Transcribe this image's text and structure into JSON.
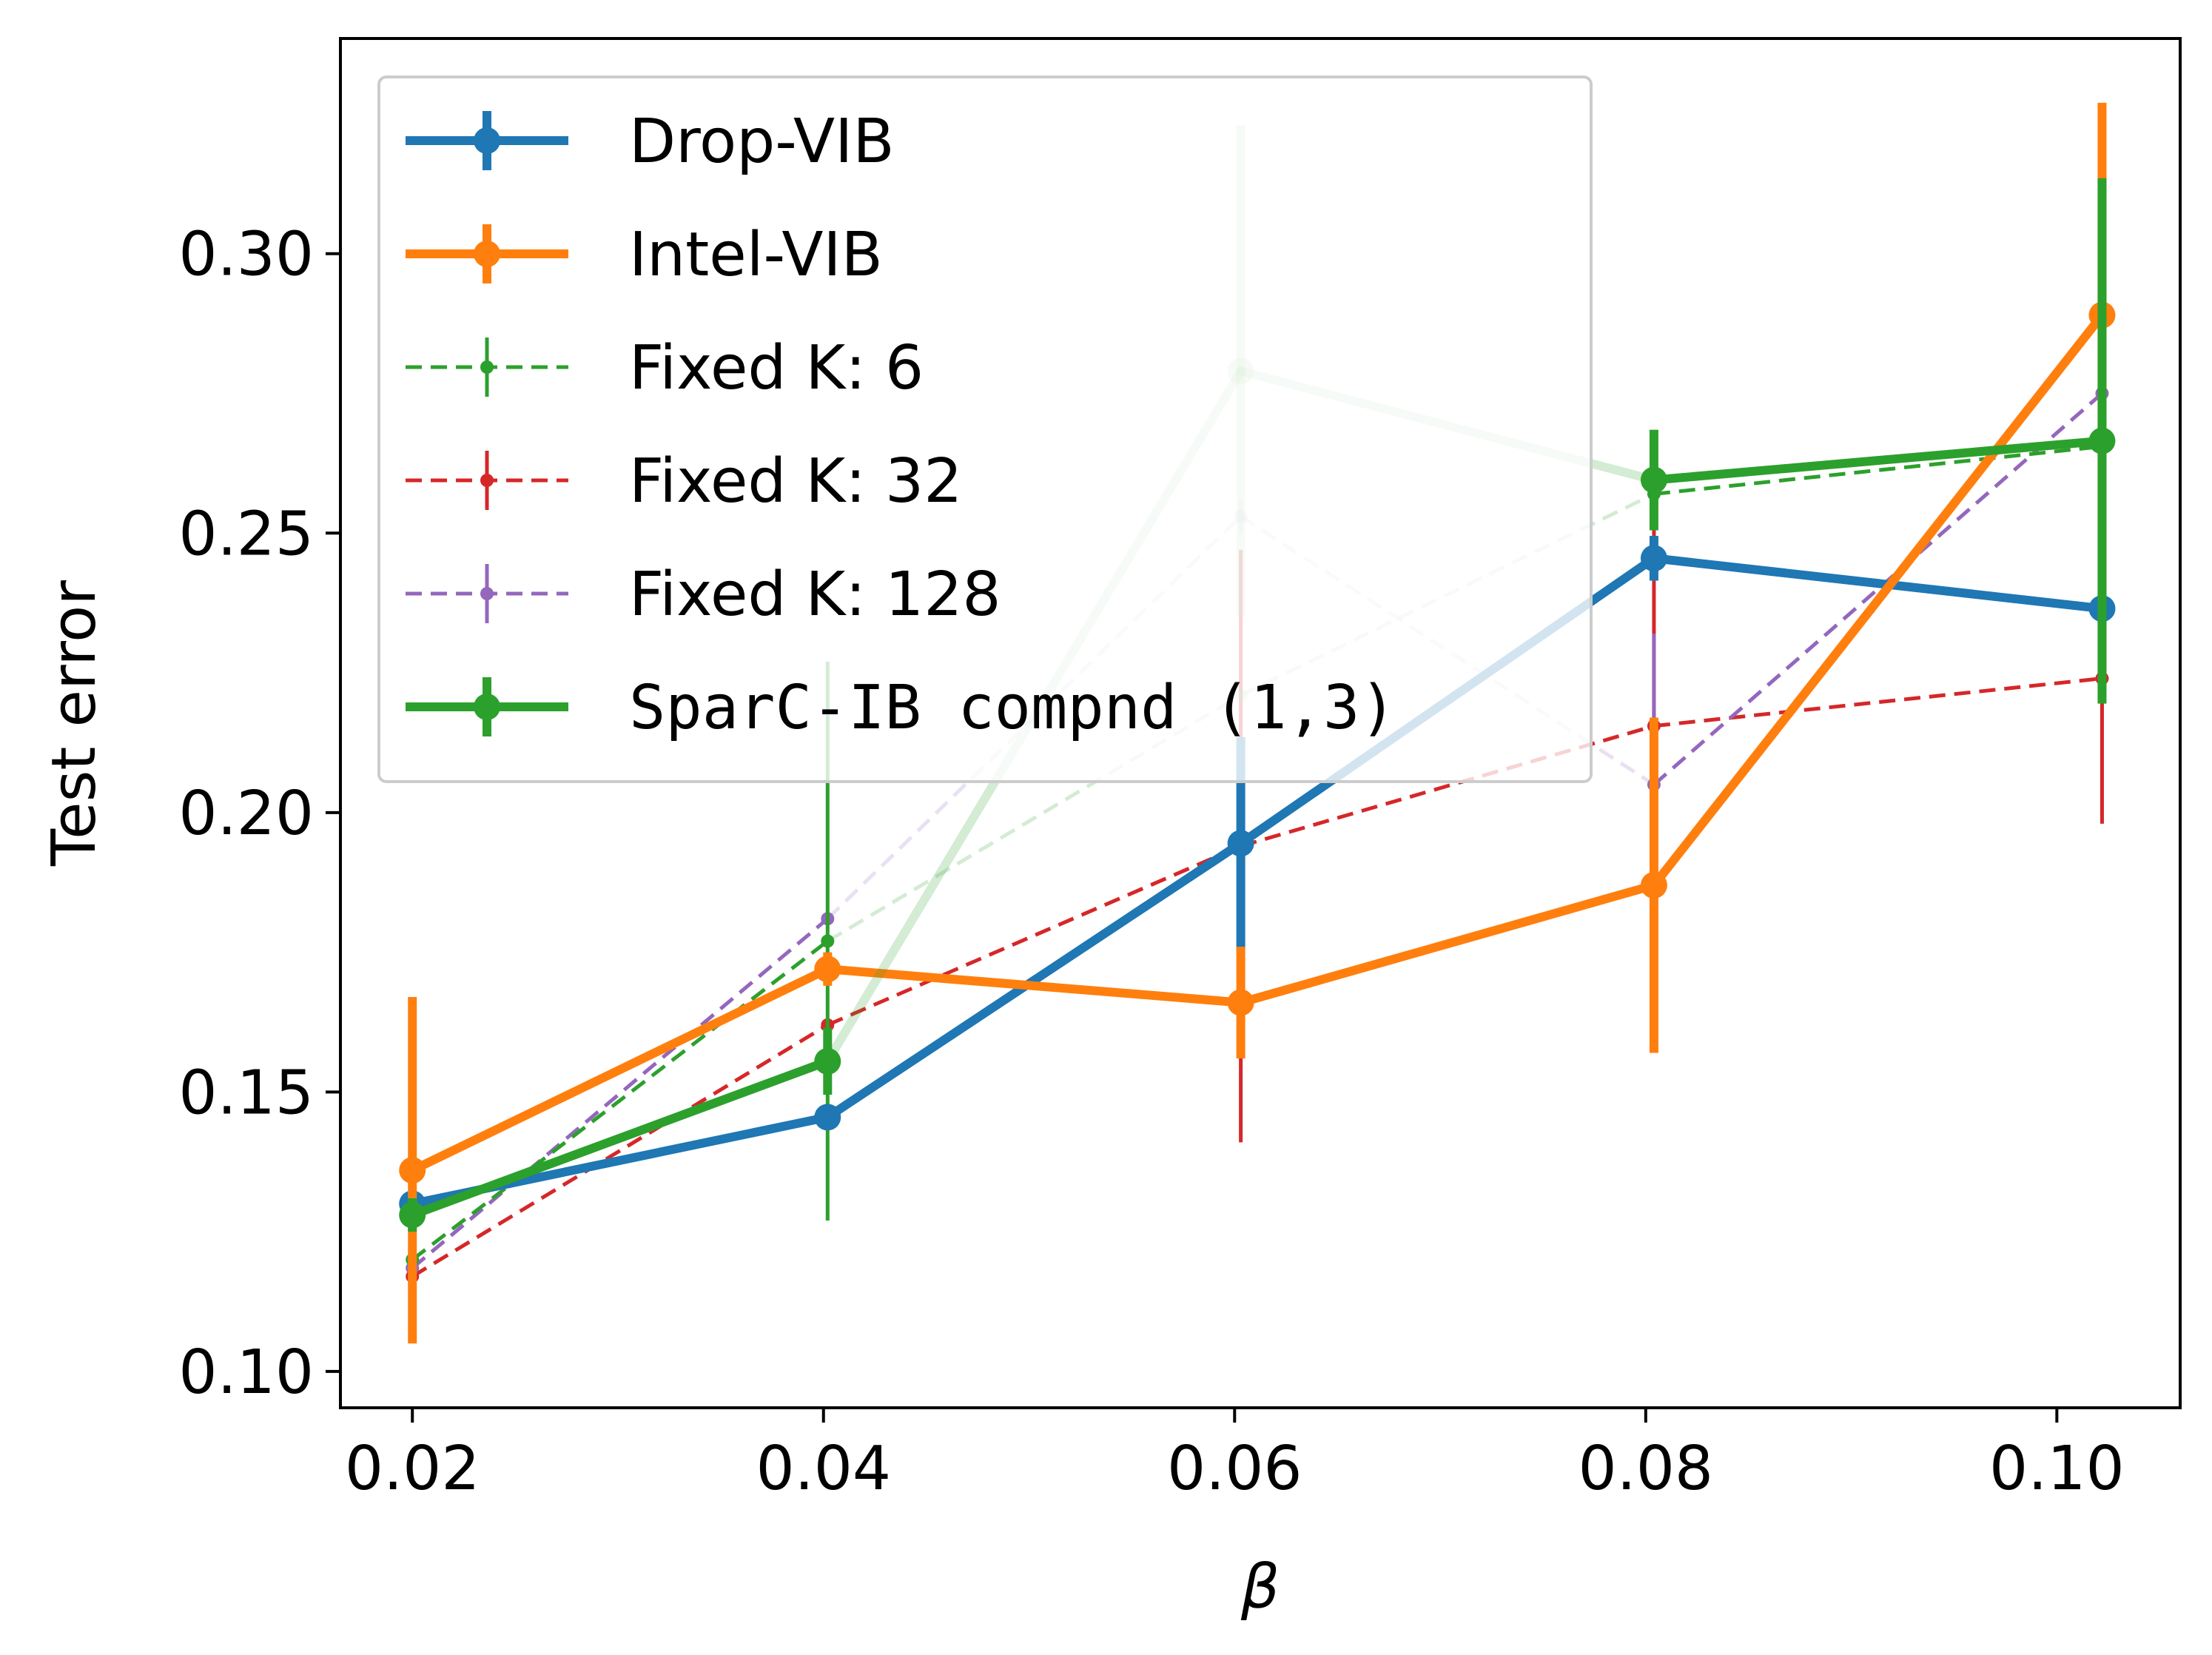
{
  "chart_data": {
    "type": "line",
    "title": "",
    "xlabel": "β",
    "ylabel": "Test error",
    "xlim": [
      0.0165,
      0.106
    ],
    "ylim": [
      0.0935,
      0.3385
    ],
    "xticks": [
      0.02,
      0.04,
      0.06,
      0.08,
      0.1
    ],
    "xtick_labels": [
      "0.02",
      "0.04",
      "0.06",
      "0.08",
      "0.10"
    ],
    "yticks": [
      0.1,
      0.15,
      0.2,
      0.25,
      0.3
    ],
    "ytick_labels": [
      "0.10",
      "0.15",
      "0.20",
      "0.25",
      "0.30"
    ],
    "legend_position": "top-left",
    "series": [
      {
        "name": "Drop-VIB",
        "color": "#1f77b4",
        "style": "solid",
        "weight": "thick",
        "x": [
          0.02,
          0.0402,
          0.0603,
          0.0804,
          0.1022
        ],
        "y": [
          0.13,
          0.1455,
          0.1945,
          0.2455,
          0.2365
        ],
        "err": [
          0.002,
          0.002,
          0.019,
          0.004,
          0.0145
        ],
        "alpha": [
          1,
          1,
          1,
          1,
          1
        ]
      },
      {
        "name": "Intel-VIB",
        "color": "#ff7f0e",
        "style": "solid",
        "weight": "thick",
        "x": [
          0.02,
          0.0402,
          0.0603,
          0.0804,
          0.1022
        ],
        "y": [
          0.136,
          0.172,
          0.166,
          0.187,
          0.289
        ],
        "err": [
          0.031,
          0.003,
          0.01,
          0.03,
          0.038
        ],
        "alpha": [
          1,
          1,
          1,
          1,
          1
        ]
      },
      {
        "name": "Fixed K: 6",
        "color": "#2ca02c",
        "style": "dashed",
        "weight": "thin",
        "x": [
          0.02,
          0.0402,
          0.0603,
          0.0804,
          0.1022
        ],
        "y": [
          0.12,
          0.177,
          0.221,
          0.257,
          0.2655
        ],
        "err": [
          0.001,
          0.05,
          0.001,
          0.001,
          0.001
        ],
        "alpha": [
          1,
          1,
          0.2,
          1,
          1
        ]
      },
      {
        "name": "Fixed K: 32",
        "color": "#d62728",
        "style": "dashed",
        "weight": "thin",
        "x": [
          0.02,
          0.0402,
          0.0603,
          0.0804,
          0.1022
        ],
        "y": [
          0.117,
          0.162,
          0.194,
          0.2155,
          0.224
        ],
        "err": [
          0.001,
          0.001,
          0.053,
          0.035,
          0.026
        ],
        "alpha": [
          1,
          1,
          1,
          1,
          1
        ]
      },
      {
        "name": "Fixed K: 128",
        "color": "#9467bd",
        "style": "dashed",
        "weight": "thin",
        "x": [
          0.02,
          0.0402,
          0.0603,
          0.0804,
          0.1022
        ],
        "y": [
          0.1185,
          0.181,
          0.253,
          0.205,
          0.275
        ],
        "err": [
          0.005,
          0.001,
          0.003,
          0.027,
          0.006
        ],
        "alpha": [
          1,
          1,
          0.2,
          1,
          1
        ]
      },
      {
        "name": "SparC-IB compnd (1,3)",
        "color": "#2ca02c",
        "style": "solid",
        "weight": "thick",
        "x": [
          0.02,
          0.0402,
          0.0603,
          0.0804,
          0.1022
        ],
        "y": [
          0.128,
          0.1555,
          0.279,
          0.2595,
          0.2665
        ],
        "err": [
          0.003,
          0.006,
          0.044,
          0.009,
          0.047
        ],
        "alpha": [
          1,
          1,
          0.2,
          1,
          1
        ]
      }
    ]
  }
}
